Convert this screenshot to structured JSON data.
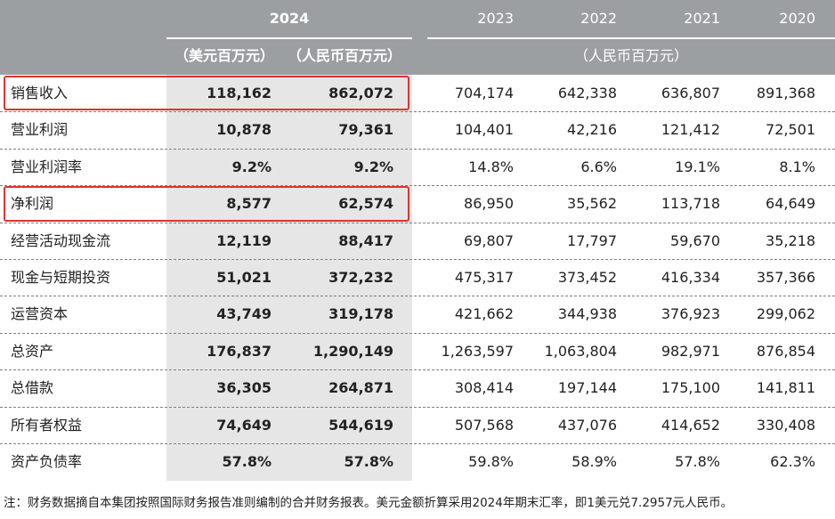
{
  "header": {
    "year_2024": "2024",
    "year_2023": "2023",
    "year_2022": "2022",
    "year_2021": "2021",
    "year_2020": "2020",
    "unit_usd": "（美元百万元）",
    "unit_rmb_2024": "（人民币百万元）",
    "unit_rmb_history": "（人民币百万元）"
  },
  "rows": [
    {
      "label": "销售收入",
      "usd": "118,162",
      "rmb": "862,072",
      "y2023": "704,174",
      "y2022": "642,338",
      "y2021": "636,807",
      "y2020": "891,368",
      "highlighted": true
    },
    {
      "label": "营业利润",
      "usd": "10,878",
      "rmb": "79,361",
      "y2023": "104,401",
      "y2022": "42,216",
      "y2021": "121,412",
      "y2020": "72,501",
      "highlighted": false
    },
    {
      "label": "营业利润率",
      "usd": "9.2%",
      "rmb": "9.2%",
      "y2023": "14.8%",
      "y2022": "6.6%",
      "y2021": "19.1%",
      "y2020": "8.1%",
      "highlighted": false
    },
    {
      "label": "净利润",
      "usd": "8,577",
      "rmb": "62,574",
      "y2023": "86,950",
      "y2022": "35,562",
      "y2021": "113,718",
      "y2020": "64,649",
      "highlighted": true
    },
    {
      "label": "经营活动现金流",
      "usd": "12,119",
      "rmb": "88,417",
      "y2023": "69,807",
      "y2022": "17,797",
      "y2021": "59,670",
      "y2020": "35,218",
      "highlighted": false
    },
    {
      "label": "现金与短期投资",
      "usd": "51,021",
      "rmb": "372,232",
      "y2023": "475,317",
      "y2022": "373,452",
      "y2021": "416,334",
      "y2020": "357,366",
      "highlighted": false
    },
    {
      "label": "运营资本",
      "usd": "43,749",
      "rmb": "319,178",
      "y2023": "421,662",
      "y2022": "344,938",
      "y2021": "376,923",
      "y2020": "299,062",
      "highlighted": false
    },
    {
      "label": "总资产",
      "usd": "176,837",
      "rmb": "1,290,149",
      "y2023": "1,263,597",
      "y2022": "1,063,804",
      "y2021": "982,971",
      "y2020": "876,854",
      "highlighted": false
    },
    {
      "label": "总借款",
      "usd": "36,305",
      "rmb": "264,871",
      "y2023": "308,414",
      "y2022": "197,144",
      "y2021": "175,100",
      "y2020": "141,811",
      "highlighted": false
    },
    {
      "label": "所有者权益",
      "usd": "74,649",
      "rmb": "544,619",
      "y2023": "507,568",
      "y2022": "437,076",
      "y2021": "414,652",
      "y2020": "330,408",
      "highlighted": false
    },
    {
      "label": "资产负债率",
      "usd": "57.8%",
      "rmb": "57.8%",
      "y2023": "59.8%",
      "y2022": "58.9%",
      "y2021": "57.8%",
      "y2020": "62.3%",
      "highlighted": false
    }
  ],
  "footnote": "注：财务数据摘自本集团按照国际财务报告准则编制的合并财务报表。美元金额折算采用2024年期末汇率，即1美元兑7.2957元人民币。",
  "colors": {
    "header_bg": "#9c9fa1",
    "highlight_column": "#e6e6e6",
    "highlight_border": "#e0332b"
  }
}
